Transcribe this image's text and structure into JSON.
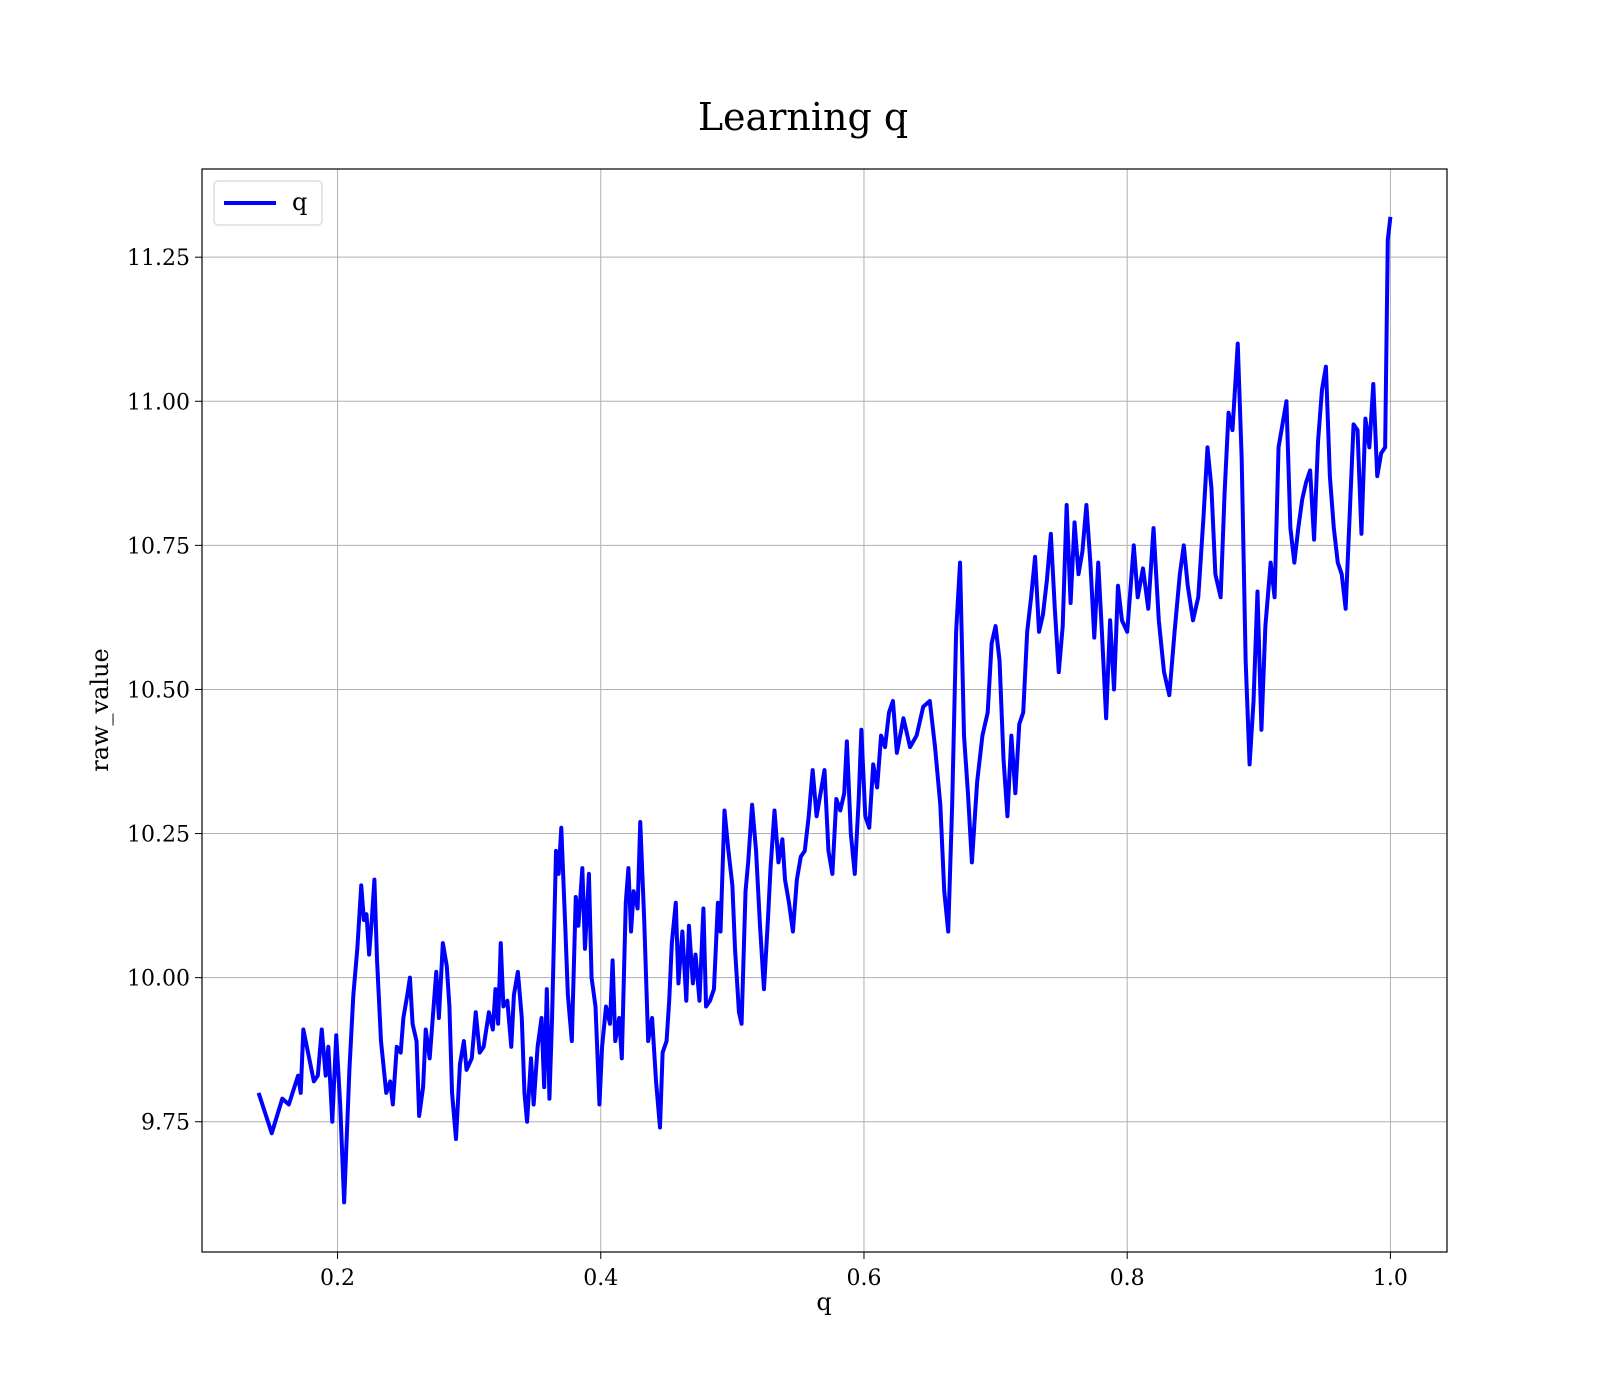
{
  "chart_data": {
    "type": "line",
    "title": "Learning q",
    "xlabel": "q",
    "ylabel": "raw_value",
    "xlim": [
      0.097,
      1.043
    ],
    "ylim": [
      9.524,
      11.403
    ],
    "xticks": [
      0.2,
      0.4,
      0.6,
      0.8,
      {
        "value": 1,
        "label": "1.0"
      }
    ],
    "yticks": [
      9.75,
      {
        "value": 10,
        "label": "10.00"
      },
      10.25,
      {
        "value": 10.5,
        "label": "10.50"
      },
      10.75,
      {
        "value": 11,
        "label": "11.00"
      },
      11.25
    ],
    "grid": true,
    "legend": "upper left",
    "series": [
      {
        "name": "q",
        "color": "#0000ff",
        "x": [
          0.14,
          0.15,
          0.158,
          0.163,
          0.17,
          0.172,
          0.174,
          0.182,
          0.185,
          0.188,
          0.191,
          0.193,
          0.196,
          0.199,
          0.202,
          0.205,
          0.209,
          0.212,
          0.215,
          0.218,
          0.22,
          0.222,
          0.224,
          0.226,
          0.228,
          0.23,
          0.233,
          0.237,
          0.24,
          0.242,
          0.245,
          0.248,
          0.25,
          0.253,
          0.255,
          0.257,
          0.26,
          0.262,
          0.265,
          0.267,
          0.27,
          0.273,
          0.275,
          0.277,
          0.28,
          0.283,
          0.285,
          0.287,
          0.29,
          0.293,
          0.296,
          0.298,
          0.302,
          0.305,
          0.308,
          0.311,
          0.315,
          0.318,
          0.32,
          0.322,
          0.324,
          0.326,
          0.329,
          0.332,
          0.334,
          0.337,
          0.34,
          0.342,
          0.344,
          0.347,
          0.349,
          0.352,
          0.355,
          0.357,
          0.359,
          0.361,
          0.363,
          0.366,
          0.368,
          0.37,
          0.373,
          0.375,
          0.378,
          0.381,
          0.383,
          0.386,
          0.388,
          0.391,
          0.393,
          0.396,
          0.399,
          0.401,
          0.404,
          0.407,
          0.409,
          0.411,
          0.414,
          0.416,
          0.419,
          0.421,
          0.423,
          0.425,
          0.428,
          0.43,
          0.433,
          0.436,
          0.439,
          0.442,
          0.445,
          0.447,
          0.45,
          0.452,
          0.454,
          0.457,
          0.459,
          0.462,
          0.465,
          0.467,
          0.47,
          0.472,
          0.475,
          0.478,
          0.48,
          0.483,
          0.486,
          0.489,
          0.491,
          0.494,
          0.497,
          0.5,
          0.502,
          0.505,
          0.507,
          0.51,
          0.512,
          0.515,
          0.518,
          0.521,
          0.524,
          0.527,
          0.529,
          0.532,
          0.535,
          0.538,
          0.54,
          0.543,
          0.546,
          0.549,
          0.552,
          0.555,
          0.558,
          0.561,
          0.564,
          0.567,
          0.57,
          0.573,
          0.576,
          0.579,
          0.582,
          0.585,
          0.587,
          0.59,
          0.593,
          0.596,
          0.598,
          0.601,
          0.604,
          0.607,
          0.61,
          0.613,
          0.616,
          0.619,
          0.622,
          0.625,
          0.63,
          0.635,
          0.64,
          0.645,
          0.65,
          0.654,
          0.658,
          0.661,
          0.664,
          0.667,
          0.67,
          0.673,
          0.676,
          0.679,
          0.682,
          0.686,
          0.69,
          0.694,
          0.697,
          0.7,
          0.703,
          0.706,
          0.709,
          0.712,
          0.715,
          0.718,
          0.721,
          0.724,
          0.727,
          0.73,
          0.733,
          0.736,
          0.739,
          0.742,
          0.745,
          0.748,
          0.751,
          0.754,
          0.757,
          0.76,
          0.763,
          0.766,
          0.769,
          0.772,
          0.775,
          0.778,
          0.781,
          0.784,
          0.787,
          0.79,
          0.793,
          0.796,
          0.8,
          0.805,
          0.808,
          0.812,
          0.816,
          0.82,
          0.824,
          0.828,
          0.832,
          0.836,
          0.84,
          0.843,
          0.846,
          0.85,
          0.854,
          0.858,
          0.861,
          0.864,
          0.867,
          0.871,
          0.874,
          0.877,
          0.88,
          0.884,
          0.887,
          0.89,
          0.893,
          0.896,
          0.899,
          0.902,
          0.905,
          0.909,
          0.912,
          0.915,
          0.918,
          0.921,
          0.924,
          0.927,
          0.93,
          0.933,
          0.936,
          0.939,
          0.942,
          0.945,
          0.948,
          0.951,
          0.954,
          0.957,
          0.96,
          0.963,
          0.966,
          0.969,
          0.972,
          0.975,
          0.978,
          0.981,
          0.984,
          0.987,
          0.99,
          0.993,
          0.996,
          0.998,
          1.0
        ],
        "values": [
          9.8,
          9.73,
          9.79,
          9.78,
          9.83,
          9.8,
          9.91,
          9.82,
          9.83,
          9.91,
          9.83,
          9.88,
          9.75,
          9.9,
          9.78,
          9.61,
          9.84,
          9.97,
          10.05,
          10.16,
          10.1,
          10.11,
          10.04,
          10.1,
          10.17,
          10.03,
          9.89,
          9.8,
          9.82,
          9.78,
          9.88,
          9.87,
          9.93,
          9.97,
          10.0,
          9.92,
          9.89,
          9.76,
          9.81,
          9.91,
          9.86,
          9.95,
          10.01,
          9.93,
          10.06,
          10.02,
          9.95,
          9.8,
          9.72,
          9.85,
          9.89,
          9.84,
          9.86,
          9.94,
          9.87,
          9.88,
          9.94,
          9.91,
          9.98,
          9.92,
          10.06,
          9.95,
          9.96,
          9.88,
          9.97,
          10.01,
          9.93,
          9.8,
          9.75,
          9.86,
          9.78,
          9.88,
          9.93,
          9.81,
          9.98,
          9.79,
          9.93,
          10.22,
          10.18,
          10.26,
          10.09,
          9.97,
          9.89,
          10.14,
          10.09,
          10.19,
          10.05,
          10.18,
          10.0,
          9.95,
          9.78,
          9.88,
          9.95,
          9.92,
          10.03,
          9.89,
          9.93,
          9.86,
          10.13,
          10.19,
          10.08,
          10.15,
          10.12,
          10.27,
          10.1,
          9.89,
          9.93,
          9.82,
          9.74,
          9.87,
          9.89,
          9.96,
          10.06,
          10.13,
          9.99,
          10.08,
          9.96,
          10.09,
          9.99,
          10.04,
          9.96,
          10.12,
          9.95,
          9.96,
          9.98,
          10.13,
          10.08,
          10.29,
          10.22,
          10.16,
          10.05,
          9.94,
          9.92,
          10.15,
          10.2,
          10.3,
          10.22,
          10.09,
          9.98,
          10.1,
          10.19,
          10.29,
          10.2,
          10.24,
          10.17,
          10.13,
          10.08,
          10.17,
          10.21,
          10.22,
          10.28,
          10.36,
          10.28,
          10.32,
          10.36,
          10.22,
          10.18,
          10.31,
          10.29,
          10.32,
          10.41,
          10.25,
          10.18,
          10.31,
          10.43,
          10.28,
          10.26,
          10.37,
          10.33,
          10.42,
          10.4,
          10.46,
          10.48,
          10.39,
          10.45,
          10.4,
          10.42,
          10.47,
          10.48,
          10.4,
          10.3,
          10.15,
          10.08,
          10.3,
          10.6,
          10.72,
          10.42,
          10.32,
          10.2,
          10.34,
          10.42,
          10.46,
          10.58,
          10.61,
          10.55,
          10.38,
          10.28,
          10.42,
          10.32,
          10.44,
          10.46,
          10.6,
          10.66,
          10.73,
          10.6,
          10.63,
          10.69,
          10.77,
          10.64,
          10.53,
          10.61,
          10.82,
          10.65,
          10.79,
          10.7,
          10.74,
          10.82,
          10.72,
          10.59,
          10.72,
          10.59,
          10.45,
          10.62,
          10.5,
          10.68,
          10.62,
          10.6,
          10.75,
          10.66,
          10.71,
          10.64,
          10.78,
          10.62,
          10.53,
          10.49,
          10.6,
          10.7,
          10.75,
          10.68,
          10.62,
          10.66,
          10.8,
          10.92,
          10.85,
          10.7,
          10.66,
          10.84,
          10.98,
          10.95,
          11.1,
          10.9,
          10.55,
          10.37,
          10.48,
          10.67,
          10.43,
          10.61,
          10.72,
          10.66,
          10.92,
          10.96,
          11.0,
          10.78,
          10.72,
          10.78,
          10.83,
          10.86,
          10.88,
          10.76,
          10.93,
          11.02,
          11.06,
          10.87,
          10.78,
          10.72,
          10.7,
          10.64,
          10.8,
          10.96,
          10.95,
          10.77,
          10.97,
          10.92,
          11.03,
          10.87,
          10.91,
          10.92,
          11.28,
          11.32
        ]
      }
    ]
  }
}
